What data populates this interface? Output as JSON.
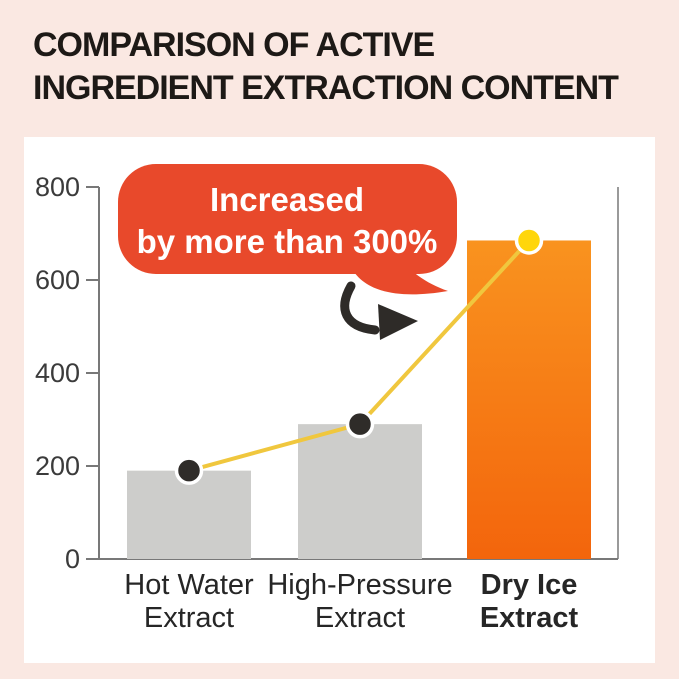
{
  "title": {
    "line1": "COMPARISON OF ACTIVE",
    "line2": "INGREDIENT EXTRACTION CONTENT"
  },
  "chart_data": {
    "type": "bar+line",
    "categories": [
      [
        "Hot Water",
        "Extract"
      ],
      [
        "High-Pressure",
        "Extract"
      ],
      [
        "Dry Ice",
        "Extract"
      ]
    ],
    "values": [
      190,
      290,
      685
    ],
    "yticks": [
      0,
      200,
      400,
      600,
      800
    ],
    "ylim": [
      0,
      800
    ],
    "grid": "off",
    "highlight_index": 2,
    "annotation": {
      "line1": "Increased",
      "line2": "by more than 300%"
    },
    "colors": {
      "background": "#fae8e2",
      "card": "#ffffff",
      "bar": "#cdcdcb",
      "bar_gradient_top": "#f9931f",
      "bar_gradient_bottom": "#f3650c",
      "line": "#f0c73e",
      "dot": "#2f2c29",
      "dot_highlight": "#ffd60b",
      "axis": "#787878",
      "bubble": "#e8492b",
      "bubble_text": "#ffffff",
      "highlight_label": "#ee6317",
      "arrow": "#2e2b28"
    }
  }
}
